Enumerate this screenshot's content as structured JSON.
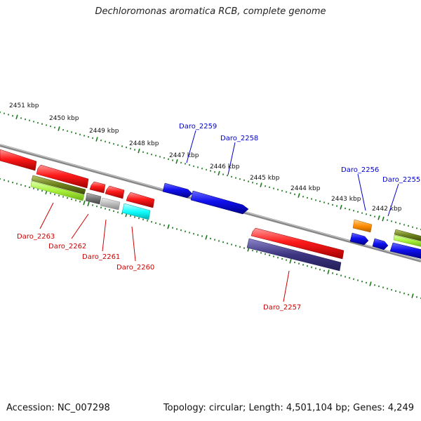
{
  "title": "Dechloromonas aromatica RCB, complete genome",
  "footer": {
    "accession": "Accession: NC_007298",
    "meta": "Topology: circular; Length: 4,501,104 bp; Genes: 4,249"
  },
  "colors": {
    "ticks": "#1a7a1a",
    "backbone": "#888888",
    "label_forward": "#0000cc",
    "label_reverse": "#cc0000"
  },
  "scale": {
    "unit": "kbp",
    "labels": [
      "2451 kbp",
      "2450 kbp",
      "2449 kbp",
      "2448 kbp",
      "2447 kbp",
      "2446 kbp",
      "2445 kbp",
      "2444 kbp",
      "2443 kbp",
      "2442 kbp"
    ]
  },
  "gene_labels": {
    "forward": [
      "Daro_2259",
      "Daro_2258",
      "Daro_2256",
      "Daro_2255"
    ],
    "reverse": [
      "Daro_2263",
      "Daro_2262",
      "Daro_2261",
      "Daro_2260",
      "Daro_2257"
    ]
  },
  "feature_colors": {
    "cds_forward": "#0000ee",
    "cds_reverse": "#ee0000",
    "cog_dark_olive": "#6b7f1a",
    "cog_lime": "#a8f03a",
    "cog_grey": "#777777",
    "cog_light_grey": "#bbbbbb",
    "cog_cyan": "#11ffff",
    "cog_navy": "#3d3580",
    "cog_orange": "#ff8c00"
  }
}
